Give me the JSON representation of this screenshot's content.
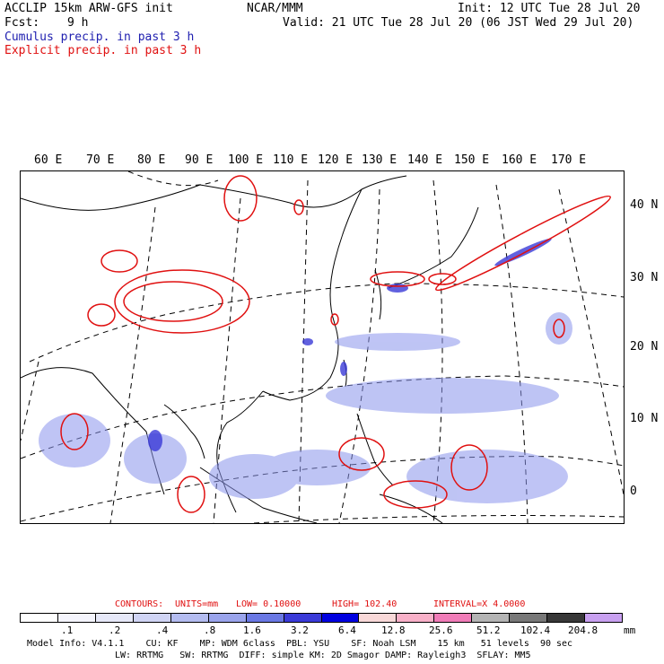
{
  "header": {
    "model_line": "ACCLIP 15km ARW-GFS init",
    "org": "NCAR/MMM",
    "init": "Init: 12 UTC Tue 28 Jul 20",
    "fcst_label": "Fcst:",
    "fcst_value": "9 h",
    "valid": "Valid: 21 UTC Tue 28 Jul 20 (06 JST Wed 29 Jul 20)",
    "cumulus": "Cumulus precip. in past 3 h",
    "explicit": "Explicit precip. in past 3 h"
  },
  "longitudes": [
    "60 E",
    "70 E",
    "80 E",
    "90 E",
    "100 E",
    "110 E",
    "120 E",
    "130 E",
    "140 E",
    "150 E",
    "160 E",
    "170 E"
  ],
  "latitudes": [
    "40 N",
    "30 N",
    "20 N",
    "10 N",
    "0"
  ],
  "contour_info": {
    "contours": "CONTOURS:",
    "units": "UNITS=mm",
    "low": "LOW= 0.10000",
    "high": "HIGH= 102.40",
    "interval": "INTERVAL=X 4.0000"
  },
  "colorbar": {
    "colors": [
      "#ffffff",
      "#f4f4fc",
      "#e6e8f8",
      "#d0d4f4",
      "#b4bcf0",
      "#9aa4ec",
      "#6a78e4",
      "#3a3ad8",
      "#0000e0",
      "#f8d8d8",
      "#f8b0c8",
      "#f07cb8",
      "#b4b4b4",
      "#787878",
      "#383838",
      "#c8a0f0"
    ],
    "labels": [
      ".1",
      ".2",
      ".4",
      ".8",
      "1.6",
      "3.2",
      "6.4",
      "12.8",
      "25.6",
      "51.2",
      "102.4",
      "204.8"
    ],
    "unit": "mm"
  },
  "footer": {
    "line1": "Model Info: V4.1.1    CU: KF    MP: WDM 6class  PBL: YSU    SF: Noah LSM    15 km   51 levels  90 sec",
    "line2": "LW: RRTMG   SW: RRTMG  DIFF: simple KM: 2D Smagor DAMP: Rayleigh3  SFLAY: MM5"
  },
  "map": {
    "cumulus_color": "#3a3ad8",
    "explicit_color": "#e01010"
  }
}
